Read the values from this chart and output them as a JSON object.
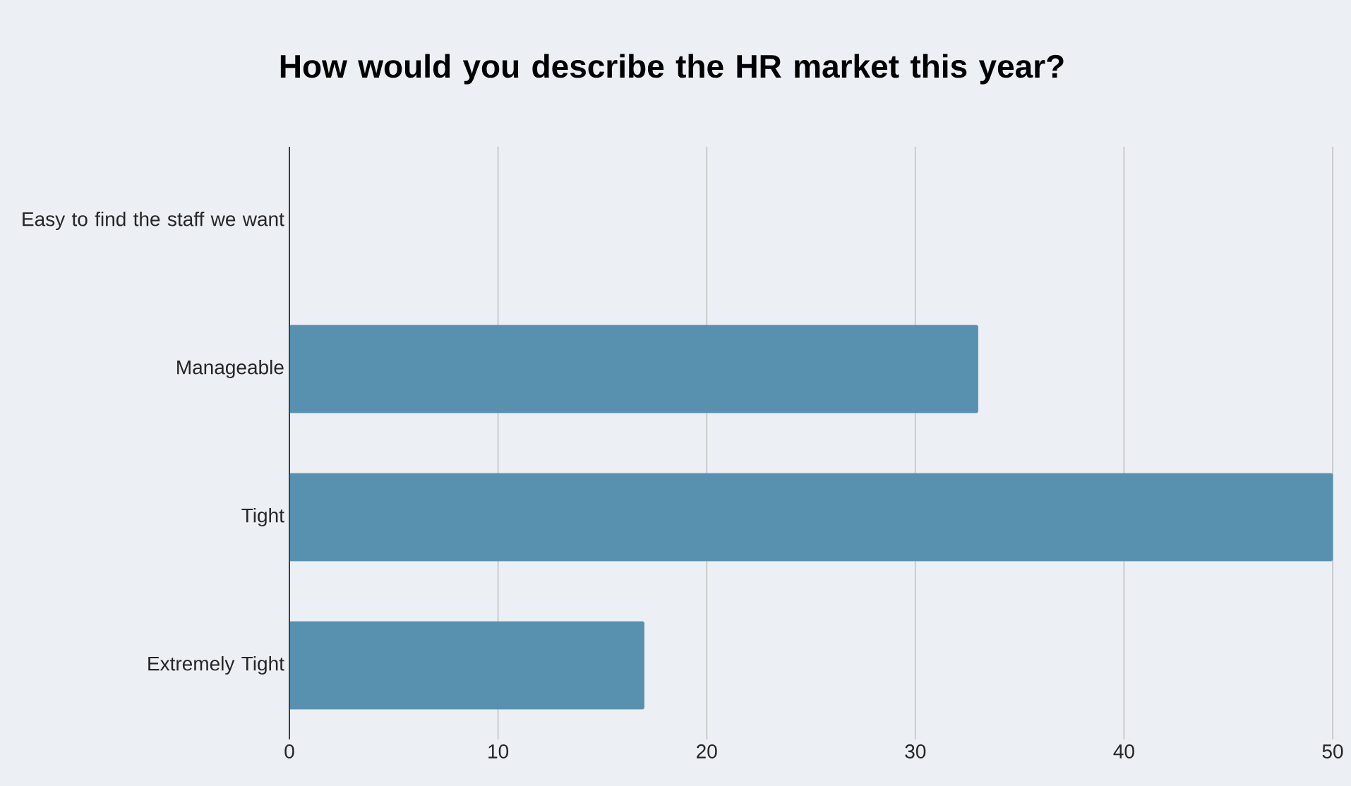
{
  "chart_data": {
    "type": "bar",
    "orientation": "horizontal",
    "title": "How would you describe the HR market this year?",
    "categories": [
      "Easy to find the staff we want",
      "Manageable",
      "Tight",
      "Extremely Tight"
    ],
    "values": [
      0,
      33,
      50,
      17
    ],
    "color": "#5891b0",
    "xlim": [
      0,
      50
    ],
    "xticks": [
      0,
      10,
      20,
      30,
      40,
      50
    ],
    "grid": "x"
  }
}
